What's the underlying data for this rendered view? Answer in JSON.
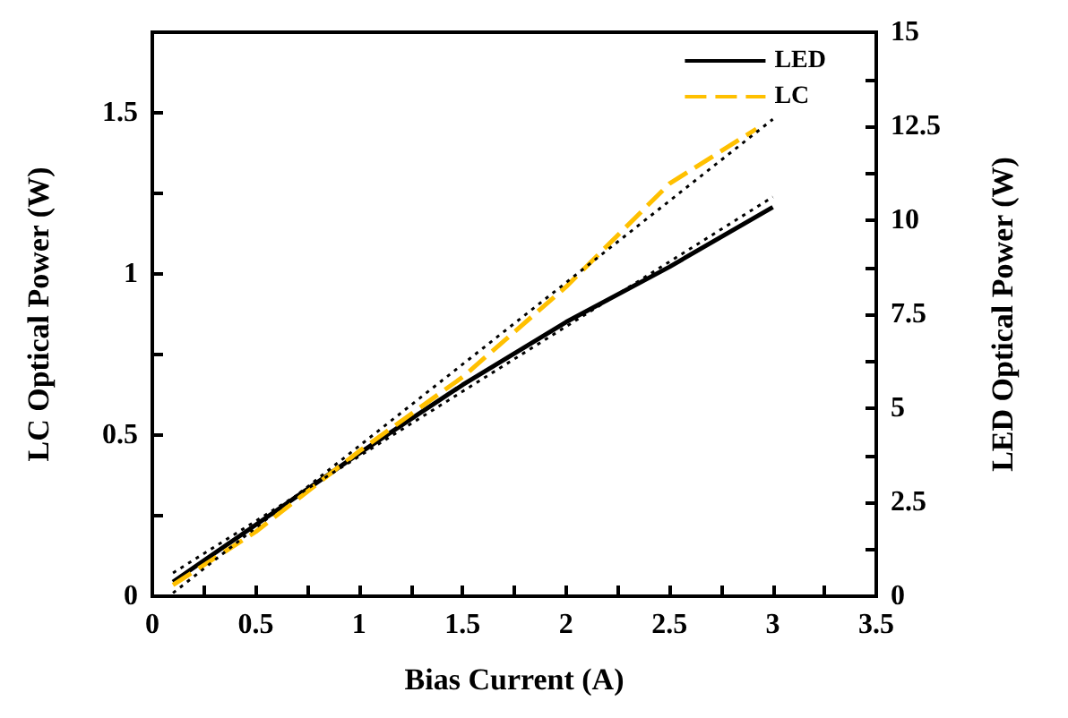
{
  "chart_data": {
    "type": "line",
    "xlabel": "Bias Current (A)",
    "ylabel": "LC Optical Power (W)",
    "y2label": "LED Optical Power (W)",
    "xlim": [
      0,
      3.5
    ],
    "xticks": [
      0,
      0.5,
      1,
      1.5,
      2,
      2.5,
      3,
      3.5
    ],
    "ylim": [
      0,
      1.75
    ],
    "yticks": [
      0,
      0.5,
      1,
      1.5
    ],
    "y2lim": [
      0,
      15
    ],
    "y2ticks": [
      0,
      2.5,
      5,
      7.5,
      10,
      12.5,
      15
    ],
    "legend": "top right",
    "marker": "none",
    "series": [
      {
        "name": "LED",
        "color": "#000000",
        "axis": "y2",
        "line_style": "solid",
        "x": [
          0.1,
          0.5,
          1,
          1.5,
          2,
          2.5,
          3
        ],
        "values": [
          0.38,
          1.9,
          3.8,
          5.62,
          7.29,
          8.76,
          10.35
        ]
      },
      {
        "name": "LC",
        "color": "#ffc000",
        "axis": "y",
        "line_style": "dashed",
        "x": [
          0.1,
          0.5,
          1,
          1.5,
          2,
          2.5,
          2.92
        ],
        "values": [
          0.035,
          0.2,
          0.45,
          0.68,
          0.96,
          1.28,
          1.45
        ]
      },
      {
        "color": "#000000",
        "axis": "y",
        "line_style": "dotted",
        "x": [
          0.1,
          3
        ],
        "values": [
          0.01,
          1.48
        ]
      },
      {
        "color": "#000000",
        "axis": "y2",
        "line_style": "dotted",
        "x": [
          0.1,
          3
        ],
        "values": [
          0.62,
          10.62
        ]
      }
    ]
  }
}
